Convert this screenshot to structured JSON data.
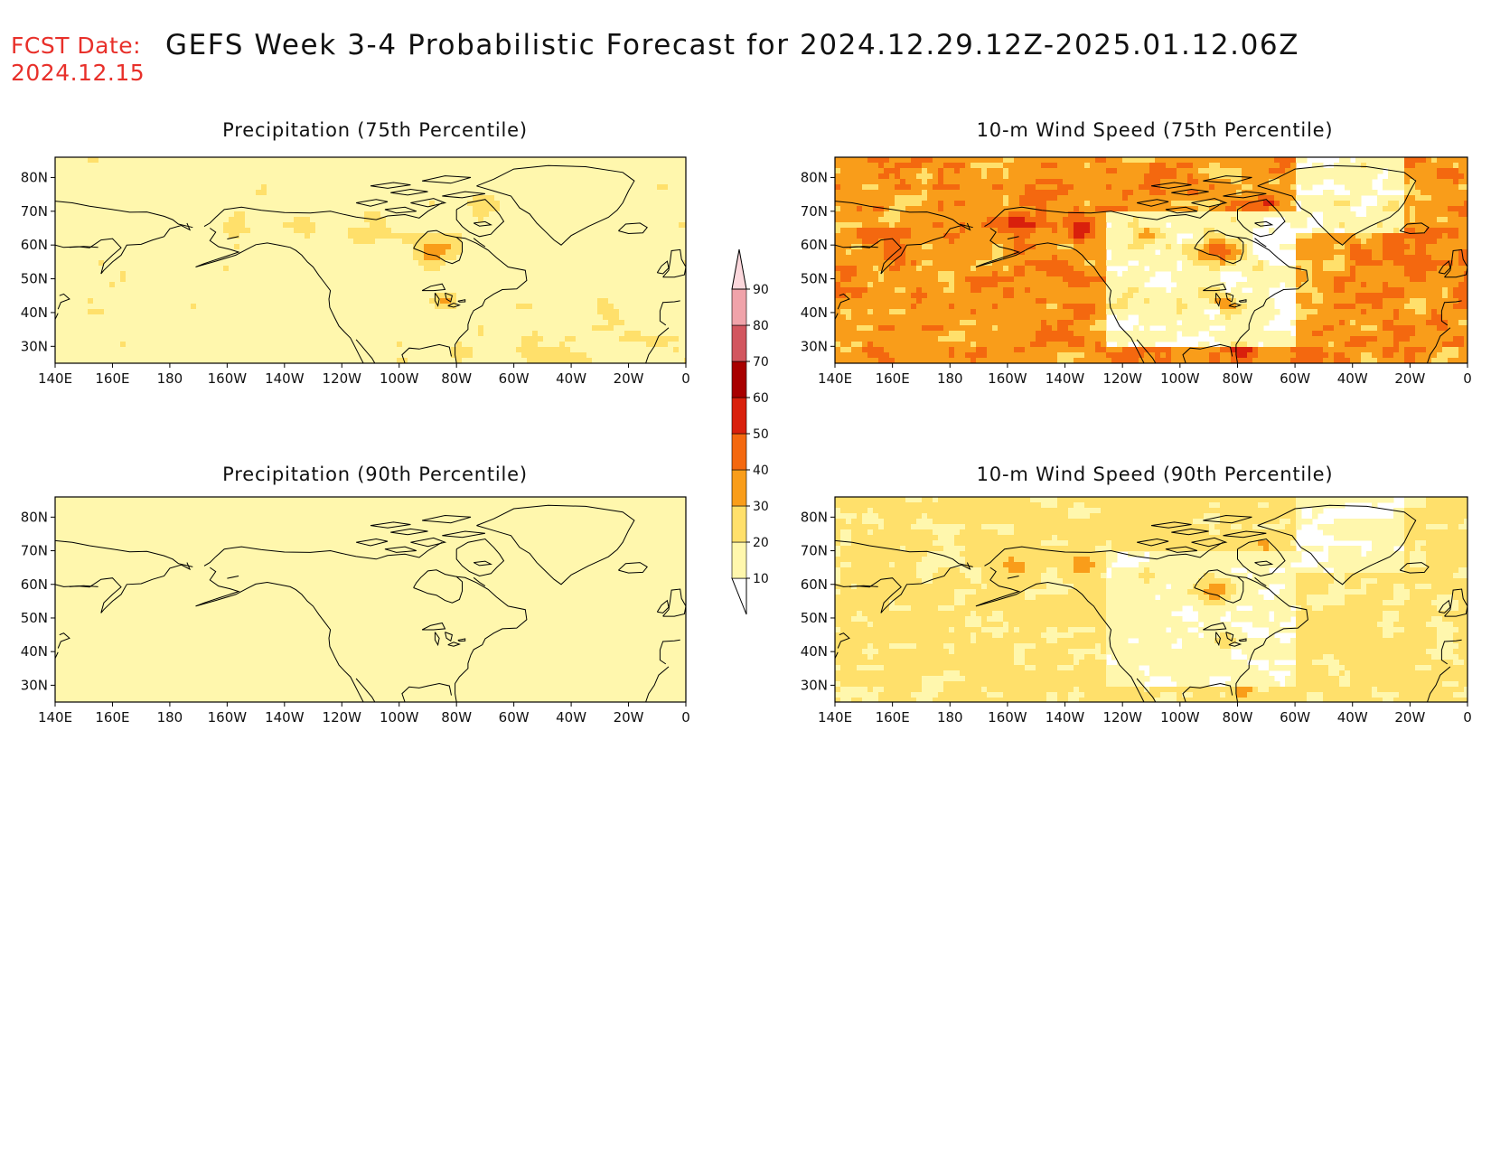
{
  "header": {
    "fcst_label": "FCST Date:",
    "fcst_date": "2024.12.15",
    "title": "GEFS Week 3-4 Probabilistic Forecast for 2024.12.29.12Z-2025.01.12.06Z"
  },
  "panels": [
    {
      "id": "precip-75",
      "title": "Precipitation (75th Percentile)",
      "intensity": 1.2,
      "hotspot": 0.9
    },
    {
      "id": "wind-75",
      "title": "10-m Wind Speed (75th Percentile)",
      "intensity": 3.3,
      "hotspot": 1.6
    },
    {
      "id": "precip-90",
      "title": "Precipitation (90th Percentile)",
      "intensity": 0.55,
      "hotspot": 0.3
    },
    {
      "id": "wind-90",
      "title": "10-m Wind Speed (90th Percentile)",
      "intensity": 1.5,
      "hotspot": 1.1
    }
  ],
  "axes": {
    "lon_ticks": [
      "140E",
      "160E",
      "180",
      "160W",
      "140W",
      "120W",
      "100W",
      "80W",
      "60W",
      "40W",
      "20W",
      "0"
    ],
    "lat_ticks": [
      "80N",
      "70N",
      "60N",
      "50N",
      "40N",
      "30N"
    ]
  },
  "colorbar": {
    "levels": [
      "10",
      "20",
      "30",
      "40",
      "50",
      "60",
      "70",
      "80",
      "90"
    ],
    "colors": [
      "#fff7ad",
      "#ffe06b",
      "#f99d1a",
      "#f4680f",
      "#d9200c",
      "#a80000",
      "#d2565f",
      "#f0a3aa",
      "#fbd7dc"
    ]
  }
}
